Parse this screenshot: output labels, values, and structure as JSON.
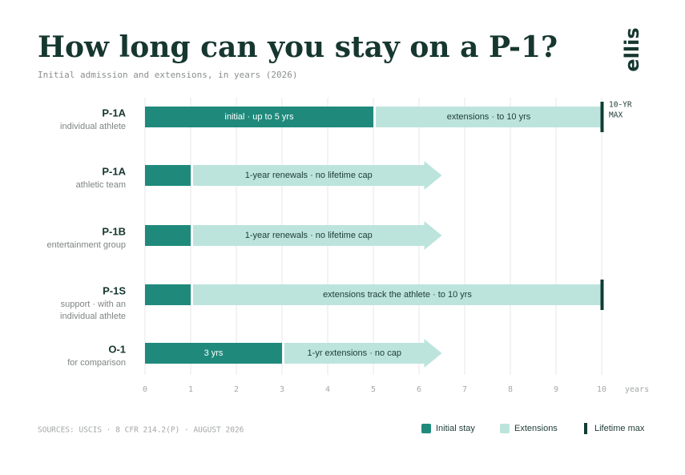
{
  "chart_data": {
    "type": "gantt",
    "title": "How long can you stay on a P-1?",
    "subtitle": "Initial admission and extensions, in years (2026)",
    "logo": "ellis",
    "source": "SOURCES: USCIS · 8 CFR 214.2(P) · AUGUST 2026",
    "categories": [
      "P-1A",
      "P-1A",
      "P-1B",
      "P-1S",
      "O-1"
    ],
    "sublabels": [
      [
        "individual athlete"
      ],
      [
        "athletic team"
      ],
      [
        "entertainment group"
      ],
      [
        "support · with an",
        "individual athlete"
      ],
      [
        "for comparison"
      ]
    ],
    "series": [
      {
        "name": "Initial stay",
        "color": "#1f8a7c",
        "values": [
          5,
          1,
          1,
          1,
          3
        ],
        "segment_labels": [
          "initial · up to 5 yrs",
          null,
          null,
          null,
          "3 yrs"
        ]
      },
      {
        "name": "Extensions",
        "color": "#bce4dd",
        "values": [
          5,
          5.5,
          5.5,
          9,
          3.5
        ],
        "segment_labels": [
          "extensions · to 10 yrs",
          "1-year renewals · no lifetime cap",
          "1-year renewals · no lifetime cap",
          "extensions track the athlete · to 10 yrs",
          "1-yr extensions · no cap"
        ],
        "open_ended": [
          false,
          true,
          true,
          false,
          true
        ]
      },
      {
        "name": "Lifetime max",
        "color": "#0f3d34",
        "values": [
          10,
          null,
          null,
          10,
          null
        ]
      }
    ],
    "max_annotation": [
      "10-YR",
      "MAX"
    ],
    "xlabel": "years",
    "xlim": [
      0,
      10
    ],
    "xticks": [
      0,
      1,
      2,
      3,
      4,
      5,
      6,
      7,
      8,
      9,
      10
    ],
    "grid": true
  }
}
